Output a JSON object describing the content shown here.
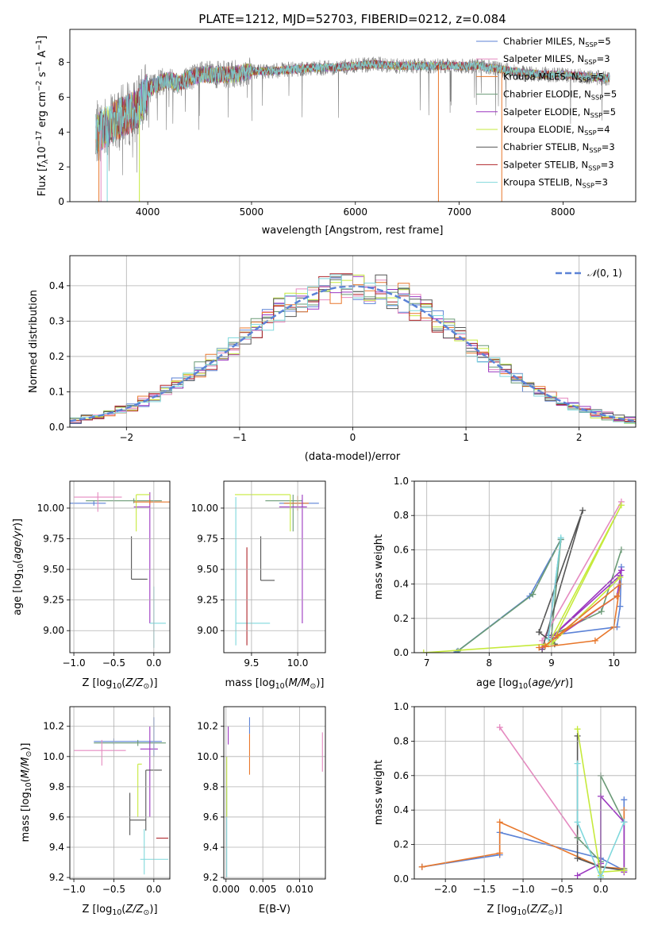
{
  "chart_data": [
    {
      "id": "spectrum",
      "type": "line",
      "title": "PLATE=1212, MJD=52703, FIBERID=0212, z=0.084",
      "xlabel": "wavelength [Angstrom, rest frame]",
      "ylabel": "Flux [f_λ 10^-17 erg cm^-2 s^-1 A^-1]",
      "xlim": [
        3250,
        8700
      ],
      "ylim": [
        0,
        9.9
      ],
      "xticks": [
        4000,
        5000,
        6000,
        7000,
        8000
      ],
      "yticks": [
        0,
        2,
        4,
        6,
        8
      ],
      "grid": false,
      "legend_position": "top-right",
      "legend": [
        "Chabrier MILES, N_SSP=5",
        "Salpeter MILES, N_SSP=3",
        "Kroupa MILES, N_SSP=5",
        "Chabrier ELODIE, N_SSP=5",
        "Salpeter ELODIE, N_SSP=5",
        "Kroupa ELODIE, N_SSP=4",
        "Chabrier STELIB, N_SSP=3",
        "Salpeter STELIB, N_SSP=3",
        "Kroupa STELIB, N_SSP=3"
      ],
      "continuum": {
        "x": [
          3500,
          3600,
          3700,
          3800,
          3900,
          4000,
          4100,
          4200,
          4300,
          4400,
          4500,
          4600,
          4800,
          5000,
          5200,
          5400,
          5600,
          5800,
          6000,
          6200,
          6400,
          6600,
          6800,
          7000,
          7200,
          7400,
          7600,
          7800,
          8000,
          8200,
          8400
        ],
        "y": [
          3.9,
          4.3,
          4.7,
          5.0,
          5.3,
          6.4,
          6.8,
          7.0,
          6.8,
          7.1,
          7.3,
          7.3,
          7.3,
          7.5,
          7.5,
          7.6,
          7.7,
          7.7,
          7.8,
          7.9,
          7.8,
          7.8,
          7.8,
          7.8,
          7.8,
          7.6,
          7.4,
          7.3,
          7.3,
          7.2,
          7.1
        ]
      }
    },
    {
      "id": "residuals",
      "type": "histogram",
      "xlabel": "(data-model)/error",
      "ylabel": "Normed distribution",
      "xlim": [
        -2.5,
        2.5
      ],
      "ylim": [
        0,
        0.485
      ],
      "xticks": [
        -2,
        -1,
        0,
        1,
        2
      ],
      "yticks": [
        0.0,
        0.1,
        0.2,
        0.3,
        0.4
      ],
      "grid": true,
      "legend_position": "top-right",
      "legend": [
        "𝒩(0,1)"
      ],
      "bin_width": 0.1
    },
    {
      "id": "age_vs_Z",
      "type": "scatter",
      "xlabel": "Z [log10(Z/Z☉)]",
      "ylabel": "age  [log10(age/yr)]",
      "xlim": [
        -1.05,
        0.2
      ],
      "ylim": [
        8.82,
        10.22
      ],
      "xticks": [
        -1.0,
        -0.5,
        0.0
      ],
      "yticks": [
        9.0,
        9.25,
        9.5,
        9.75,
        10.0
      ],
      "grid": true,
      "points": [
        {
          "x": -0.75,
          "y": 10.04,
          "xerr": [
            0.95,
            0.15
          ],
          "yerr": [
            0.02,
            0.02
          ],
          "color": "#5b82d6"
        },
        {
          "x": -0.25,
          "y": 10.06,
          "xerr": [
            0.6,
            0.35
          ],
          "yerr": [
            0.02,
            0.02
          ],
          "color": "#6a9a76"
        },
        {
          "x": -0.7,
          "y": 10.09,
          "xerr": [
            0.3,
            0.3
          ],
          "yerr": [
            0.12,
            0.04
          ],
          "color": "#e58ac0"
        },
        {
          "x": -0.28,
          "y": 9.42,
          "xerr": [
            0.0,
            0.2
          ],
          "yerr": [
            0.0,
            0.35
          ],
          "color": "#555555"
        },
        {
          "x": -0.05,
          "y": 10.01,
          "xerr": [
            0.2,
            0.0
          ],
          "yerr": [
            0.95,
            0.12
          ],
          "color": "#9b37c0"
        },
        {
          "x": -0.22,
          "y": 10.11,
          "xerr": [
            0.0,
            0.17
          ],
          "yerr": [
            0.3,
            0.0
          ],
          "color": "#c6ea3c"
        },
        {
          "x": 0.0,
          "y": 9.06,
          "xerr": [
            0.05,
            0.15
          ],
          "yerr": [
            0.2,
            0.3
          ],
          "color": "#7fd8dc"
        },
        {
          "x": -0.05,
          "y": 10.05,
          "xerr": [
            0.2,
            0.25
          ],
          "yerr": [
            0.02,
            0.02
          ],
          "color": "#e8772b"
        }
      ]
    },
    {
      "id": "age_vs_mass",
      "type": "scatter",
      "xlabel": "mass [log10(M/M☉)]",
      "ylabel": "",
      "xlim": [
        9.2,
        10.3
      ],
      "ylim": [
        8.82,
        10.22
      ],
      "xticks": [
        9.5,
        10.0
      ],
      "yticks": [
        9.0,
        9.25,
        9.5,
        9.75,
        10.0
      ],
      "grid": true,
      "points": [
        {
          "x": 10.05,
          "y": 10.04,
          "xerr": [
            0.25,
            0.18
          ],
          "yerr": [
            0.03,
            0.03
          ],
          "color": "#5b82d6"
        },
        {
          "x": 9.95,
          "y": 10.06,
          "xerr": [
            0.3,
            0.1
          ],
          "yerr": [
            0.25,
            0.05
          ],
          "color": "#6a9a76"
        },
        {
          "x": 10.0,
          "y": 10.04,
          "xerr": [
            0.15,
            0.12
          ],
          "yerr": [
            0.06,
            0.06
          ],
          "color": "#e8772b"
        },
        {
          "x": 9.6,
          "y": 9.41,
          "xerr": [
            0.0,
            0.15
          ],
          "yerr": [
            0.0,
            0.36
          ],
          "color": "#555555"
        },
        {
          "x": 10.05,
          "y": 10.01,
          "xerr": [
            0.25,
            0.05
          ],
          "yerr": [
            0.95,
            0.1
          ],
          "color": "#9b37c0"
        },
        {
          "x": 9.92,
          "y": 10.11,
          "xerr": [
            0.6,
            0.0
          ],
          "yerr": [
            0.3,
            0.0
          ],
          "color": "#c6ea3c"
        },
        {
          "x": 9.33,
          "y": 9.06,
          "xerr": [
            0.0,
            0.37
          ],
          "yerr": [
            0.18,
            1.03
          ],
          "color": "#7fd8dc"
        },
        {
          "x": 9.45,
          "y": 9.68,
          "xerr": [
            0.0,
            0.0
          ],
          "yerr": [
            0.8,
            0.0
          ],
          "color": "#b0252a"
        }
      ]
    },
    {
      "id": "massweight_vs_age",
      "type": "line",
      "xlabel": "age  [log10(age/yr)]",
      "ylabel": "mass weight",
      "xlim": [
        6.8,
        10.35
      ],
      "ylim": [
        0,
        1.0
      ],
      "xticks": [
        7,
        8,
        9,
        10
      ],
      "yticks": [
        0.0,
        0.2,
        0.4,
        0.6,
        0.8,
        1.0
      ],
      "grid": true,
      "series": [
        {
          "color": "#5b82d6",
          "x": [
            7.48,
            8.65,
            9.15,
            8.95,
            10.05,
            10.1,
            10.12
          ],
          "y": [
            0.005,
            0.33,
            0.66,
            0.1,
            0.15,
            0.27,
            0.5
          ]
        },
        {
          "color": "#6a9a76",
          "x": [
            7.5,
            8.7,
            9.15,
            9.0,
            9.8,
            10.12
          ],
          "y": [
            0.01,
            0.34,
            0.66,
            0.1,
            0.24,
            0.6
          ]
        },
        {
          "color": "#e58ac0",
          "x": [
            8.85,
            10.12
          ],
          "y": [
            0.07,
            0.88
          ]
        },
        {
          "color": "#555555",
          "x": [
            8.85,
            9.5,
            8.8,
            9.05,
            9.0
          ],
          "y": [
            0.02,
            0.83,
            0.12,
            0.05,
            0.1
          ]
        },
        {
          "color": "#9b37c0",
          "x": [
            8.85,
            10.05,
            10.12,
            9.0,
            10.1
          ],
          "y": [
            0.03,
            0.33,
            0.48,
            0.09,
            0.45
          ]
        },
        {
          "color": "#c6ea3c",
          "x": [
            6.95,
            8.95,
            10.12,
            9.0,
            10.1
          ],
          "y": [
            0.0,
            0.05,
            0.86,
            0.05,
            0.44
          ]
        },
        {
          "color": "#e8772b",
          "x": [
            8.8,
            9.7,
            10.0,
            10.1,
            8.9,
            9.1,
            10.05
          ],
          "y": [
            0.03,
            0.07,
            0.15,
            0.4,
            0.04,
            0.1,
            0.33
          ]
        },
        {
          "color": "#7fd8dc",
          "x": [
            8.95,
            9.15
          ],
          "y": [
            0.08,
            0.67
          ]
        }
      ]
    },
    {
      "id": "mass_vs_Z",
      "type": "scatter",
      "xlabel": "Z [log10(Z/Z☉)]",
      "ylabel": "mass [log10(M/M☉)]",
      "xlim": [
        -1.05,
        0.2
      ],
      "ylim": [
        9.19,
        10.33
      ],
      "xticks": [
        -1.0,
        -0.5,
        0.0
      ],
      "yticks": [
        9.2,
        9.4,
        9.6,
        9.8,
        10.0,
        10.2
      ],
      "grid": true,
      "points": [
        {
          "x": -0.5,
          "y": 10.1,
          "xerr": [
            0.25,
            0.6
          ],
          "yerr": [
            0.02,
            0.02
          ],
          "color": "#5b82d6"
        },
        {
          "x": -0.2,
          "y": 10.09,
          "xerr": [
            0.55,
            0.35
          ],
          "yerr": [
            0.02,
            0.02
          ],
          "color": "#6a9a76"
        },
        {
          "x": -0.65,
          "y": 10.04,
          "xerr": [
            0.35,
            0.3
          ],
          "yerr": [
            0.1,
            0.07
          ],
          "color": "#e58ac0"
        },
        {
          "x": -0.3,
          "y": 9.58,
          "xerr": [
            0.0,
            0.2
          ],
          "yerr": [
            0.1,
            0.18
          ],
          "color": "#555555"
        },
        {
          "x": -0.05,
          "y": 10.05,
          "xerr": [
            0.12,
            0.1
          ],
          "yerr": [
            0.45,
            0.15
          ],
          "color": "#9b37c0"
        },
        {
          "x": -0.2,
          "y": 9.95,
          "xerr": [
            0.0,
            0.05
          ],
          "yerr": [
            0.35,
            0.0
          ],
          "color": "#c6ea3c"
        },
        {
          "x": -0.1,
          "y": 9.91,
          "xerr": [
            0.0,
            0.2
          ],
          "yerr": [
            0.4,
            0.0
          ],
          "color": "#555555"
        },
        {
          "x": -0.12,
          "y": 9.32,
          "xerr": [
            0.05,
            0.3
          ],
          "yerr": [
            0.1,
            0.2
          ],
          "color": "#7fd8dc"
        },
        {
          "x": 0.03,
          "y": 9.46,
          "xerr": [
            0.0,
            0.15
          ],
          "yerr": [
            0.0,
            0.0
          ],
          "color": "#b0252a"
        },
        {
          "x": 0.0,
          "y": 10.1,
          "xerr": [
            0.0,
            0.0
          ],
          "yerr": [
            0.1,
            0.16
          ],
          "color": "#5b82d6"
        }
      ]
    },
    {
      "id": "mass_vs_EBV",
      "type": "scatter",
      "xlabel": "E(B-V)",
      "ylabel": "",
      "xlim": [
        -0.0003,
        0.0135
      ],
      "ylim": [
        9.19,
        10.33
      ],
      "xticks": [
        0.0,
        0.005,
        0.01
      ],
      "yticks": [
        9.2,
        9.4,
        9.6,
        9.8,
        10.0,
        10.2
      ],
      "grid": true,
      "points": [
        {
          "x": 0.0003,
          "y": 10.15,
          "xerr": [
            0,
            0
          ],
          "yerr": [
            0.07,
            0.05
          ],
          "color": "#9b37c0"
        },
        {
          "x": 0.0001,
          "y": 9.5,
          "xerr": [
            0,
            0
          ],
          "yerr": [
            0.3,
            0.3
          ],
          "color": "#7fd8dc"
        },
        {
          "x": 0.0001,
          "y": 9.8,
          "xerr": [
            0,
            0
          ],
          "yerr": [
            0.2,
            0.2
          ],
          "color": "#c6ea3c"
        },
        {
          "x": 0.0032,
          "y": 10.15,
          "xerr": [
            0,
            0
          ],
          "yerr": [
            0.0,
            0.11
          ],
          "color": "#5b82d6"
        },
        {
          "x": 0.0032,
          "y": 10.0,
          "xerr": [
            0,
            0
          ],
          "yerr": [
            0.12,
            0.15
          ],
          "color": "#e8772b"
        },
        {
          "x": 0.0131,
          "y": 10.05,
          "xerr": [
            0,
            0
          ],
          "yerr": [
            0.15,
            0.11
          ],
          "color": "#e58ac0"
        }
      ]
    },
    {
      "id": "massweight_vs_Z",
      "type": "line",
      "xlabel": "Z [log10(Z/Z☉)]",
      "ylabel": "mass weight",
      "xlim": [
        -2.4,
        0.45
      ],
      "ylim": [
        0,
        1.0
      ],
      "xticks": [
        -2.0,
        -1.5,
        -1.0,
        -0.5,
        0.0
      ],
      "yticks": [
        0.0,
        0.2,
        0.4,
        0.6,
        0.8,
        1.0
      ],
      "grid": true,
      "series": [
        {
          "color": "#5b82d6",
          "x": [
            -2.3,
            -1.3,
            -1.3,
            0.0,
            0.3,
            0.3
          ],
          "y": [
            0.07,
            0.14,
            0.27,
            0.12,
            0.05,
            0.46
          ]
        },
        {
          "color": "#e8772b",
          "x": [
            -2.3,
            -1.3,
            -1.3,
            0.0,
            0.3,
            0.3
          ],
          "y": [
            0.07,
            0.15,
            0.33,
            0.07,
            0.06,
            0.4
          ]
        },
        {
          "color": "#e58ac0",
          "x": [
            -1.3,
            -0.3
          ],
          "y": [
            0.88,
            0.24
          ]
        },
        {
          "color": "#555555",
          "x": [
            -0.3,
            -0.3,
            0.0,
            0.3
          ],
          "y": [
            0.83,
            0.12,
            0.07,
            0.05
          ]
        },
        {
          "color": "#6a9a76",
          "x": [
            -0.3,
            0.0,
            0.0,
            0.3,
            0.3
          ],
          "y": [
            0.24,
            0.1,
            0.6,
            0.33,
            0.06
          ]
        },
        {
          "color": "#9b37c0",
          "x": [
            -0.3,
            0.0,
            0.0,
            0.3,
            0.3
          ],
          "y": [
            0.02,
            0.09,
            0.48,
            0.33,
            0.04
          ]
        },
        {
          "color": "#c6ea3c",
          "x": [
            -0.3,
            0.0,
            0.0,
            0.3
          ],
          "y": [
            0.87,
            0.02,
            0.04,
            0.05
          ]
        },
        {
          "color": "#7fd8dc",
          "x": [
            -0.3,
            -0.3,
            0.0,
            0.3
          ],
          "y": [
            0.67,
            0.33,
            0.01,
            0.33
          ]
        }
      ]
    }
  ],
  "colors": {
    "blue": "#5b82d6",
    "pink": "#e58ac0",
    "orange": "#e8772b",
    "green": "#6a9a76",
    "purple": "#9b37c0",
    "lime": "#c6ea3c",
    "gray": "#555555",
    "red": "#b0252a",
    "cyan": "#7fd8dc",
    "spec_gray": "#808080",
    "gauss": "#5b82d6"
  }
}
